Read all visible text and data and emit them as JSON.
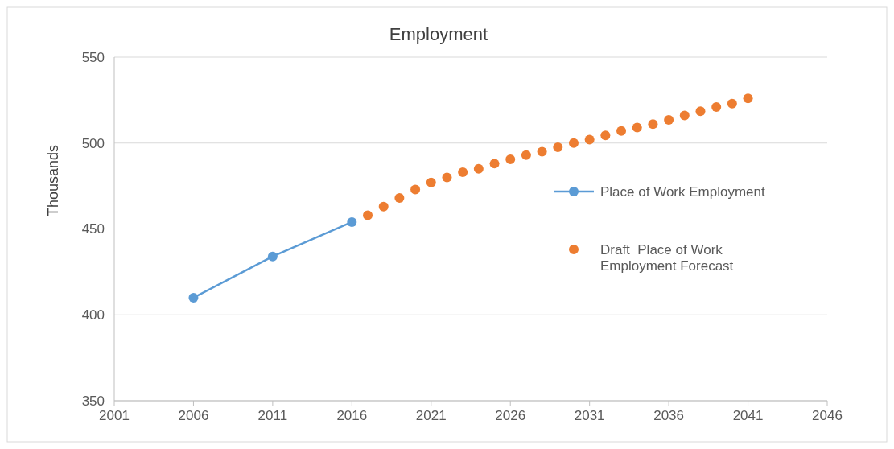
{
  "chart_data": {
    "type": "line",
    "title": "Employment",
    "ylabel": "Thousands",
    "xlim": [
      2001,
      2046
    ],
    "xticks": [
      2001,
      2006,
      2011,
      2016,
      2021,
      2026,
      2031,
      2036,
      2041,
      2046
    ],
    "ylim": [
      350,
      550
    ],
    "yticks": [
      350,
      400,
      450,
      500,
      550
    ],
    "grid": "y",
    "legend": "right",
    "marker": "circle",
    "series": [
      {
        "name": "Place of Work Employment",
        "color": "#5b9bd5",
        "x": [
          2006,
          2011,
          2016
        ],
        "values": [
          410,
          434,
          454
        ]
      },
      {
        "name": "Draft  Place of Work Employment Forecast",
        "color": "#ed7d31",
        "type": "scatter",
        "x": [
          2017,
          2018,
          2019,
          2020,
          2021,
          2022,
          2023,
          2024,
          2025,
          2026,
          2027,
          2028,
          2029,
          2030,
          2031,
          2032,
          2033,
          2034,
          2035,
          2036,
          2037,
          2038,
          2039,
          2040,
          2041
        ],
        "values": [
          458,
          463,
          468,
          473,
          477,
          480,
          483,
          485,
          488,
          490.5,
          493,
          495,
          497.5,
          500,
          502,
          504.5,
          507,
          509,
          511,
          513.5,
          516,
          518.5,
          521,
          523,
          526
        ]
      }
    ]
  }
}
